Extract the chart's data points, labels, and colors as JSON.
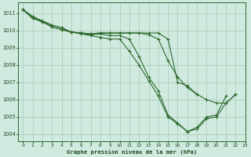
{
  "title": "Graphe pression niveau de la mer (hPa)",
  "bg_color": "#d0eae0",
  "grid_color": "#a8c8b4",
  "line_color": "#2d6a2d",
  "text_color": "#1a4a1a",
  "xlim_min": -0.5,
  "xlim_max": 23,
  "ylim_min": 1003.6,
  "ylim_max": 1011.6,
  "yticks": [
    1004,
    1005,
    1006,
    1007,
    1008,
    1009,
    1010,
    1011
  ],
  "xticks": [
    0,
    1,
    2,
    3,
    4,
    5,
    6,
    7,
    8,
    9,
    10,
    11,
    12,
    13,
    14,
    15,
    16,
    17,
    18,
    19,
    20,
    21,
    22,
    23
  ],
  "series": [
    {
      "x": [
        0,
        1,
        2,
        3,
        4,
        5,
        6,
        7,
        8,
        9,
        10,
        11,
        12,
        13,
        14,
        15,
        16,
        17,
        18,
        19,
        20,
        21,
        22
      ],
      "y": [
        1011.2,
        1010.8,
        1010.55,
        1010.3,
        1010.15,
        1009.9,
        1009.8,
        1009.7,
        1009.6,
        1009.5,
        1009.5,
        1008.8,
        1008.0,
        1007.1,
        1006.2,
        1005.0,
        1004.6,
        1004.15,
        1004.3,
        1004.9,
        1005.0,
        1005.8,
        1006.3
      ]
    },
    {
      "x": [
        0,
        1,
        2,
        3,
        4,
        5,
        6,
        7,
        8,
        9,
        10,
        11,
        12,
        13,
        14,
        15,
        16,
        17,
        18,
        19,
        20,
        21
      ],
      "y": [
        1011.2,
        1010.8,
        1010.55,
        1010.3,
        1010.15,
        1009.9,
        1009.85,
        1009.75,
        1009.8,
        1009.7,
        1009.7,
        1009.5,
        1008.5,
        1007.3,
        1006.5,
        1005.1,
        1004.65,
        1004.15,
        1004.4,
        1005.0,
        1005.1,
        1006.2
      ]
    },
    {
      "x": [
        0,
        1,
        2,
        3,
        4,
        5,
        6,
        7,
        8,
        9,
        10,
        11,
        12,
        13,
        14,
        15,
        16,
        17,
        18,
        19,
        20,
        21,
        22
      ],
      "y": [
        1011.2,
        1010.7,
        1010.5,
        1010.2,
        1010.05,
        1009.9,
        1009.85,
        1009.8,
        1009.85,
        1009.85,
        1009.85,
        1009.85,
        1009.85,
        1009.75,
        1009.5,
        1008.25,
        1007.3,
        1006.7,
        1006.3,
        1006.0,
        1005.8,
        1005.8,
        1006.3
      ]
    },
    {
      "x": [
        0,
        1,
        2,
        3,
        4,
        5,
        6,
        7,
        8,
        9,
        10,
        11,
        12,
        13,
        14,
        15,
        16,
        17,
        18,
        19,
        20,
        21,
        22
      ],
      "y": [
        1011.2,
        1010.7,
        1010.5,
        1010.2,
        1010.05,
        1009.9,
        1009.85,
        1009.8,
        1009.85,
        1009.85,
        1009.85,
        1009.85,
        1009.85,
        1009.85,
        1009.85,
        1009.5,
        1007.0,
        1006.8,
        1006.3,
        null,
        null,
        null,
        null
      ]
    }
  ]
}
